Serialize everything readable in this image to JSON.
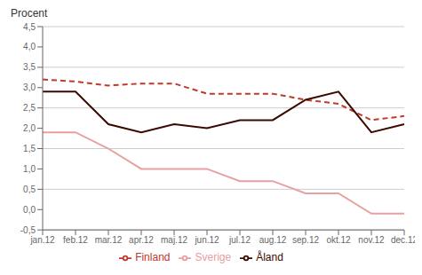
{
  "chart_data": {
    "type": "line",
    "y_label": "Procent",
    "categories": [
      "jan.12",
      "feb.12",
      "mar.12",
      "apr.12",
      "maj.12",
      "jun.12",
      "jul.12",
      "aug.12",
      "sep.12",
      "okt.12",
      "nov.12",
      "dec.12"
    ],
    "series": [
      {
        "name": "Sverige",
        "color": "#e8a0a0",
        "line_style": "solid",
        "values": [
          1.9,
          1.9,
          1.5,
          1.0,
          1.0,
          1.0,
          0.7,
          0.7,
          0.4,
          0.4,
          -0.1,
          -0.1
        ]
      },
      {
        "name": "Finland",
        "color": "#c0392b",
        "line_style": "dashed",
        "values": [
          3.2,
          3.15,
          3.05,
          3.1,
          3.1,
          2.85,
          2.85,
          2.85,
          2.7,
          2.6,
          2.2,
          2.3
        ]
      },
      {
        "name": "Åland",
        "color": "#3a0a00",
        "line_style": "solid",
        "values": [
          2.9,
          2.9,
          2.1,
          1.9,
          2.1,
          2.0,
          2.2,
          2.2,
          2.7,
          2.9,
          1.9,
          2.1
        ]
      }
    ],
    "ylim": [
      -0.5,
      4.5
    ],
    "yticks": [
      {
        "value": -0.5,
        "label": "-0,5"
      },
      {
        "value": 0.0,
        "label": "0,0"
      },
      {
        "value": 0.5,
        "label": "0,5"
      },
      {
        "value": 1.0,
        "label": "1,0"
      },
      {
        "value": 1.5,
        "label": "1,5"
      },
      {
        "value": 2.0,
        "label": "2,0"
      },
      {
        "value": 2.5,
        "label": "2,5"
      },
      {
        "value": 3.0,
        "label": "3,0"
      },
      {
        "value": 3.5,
        "label": "3,5"
      },
      {
        "value": 4.0,
        "label": "4,0"
      },
      {
        "value": 4.5,
        "label": "4,5"
      }
    ],
    "grid": true,
    "legend": "bottom"
  }
}
